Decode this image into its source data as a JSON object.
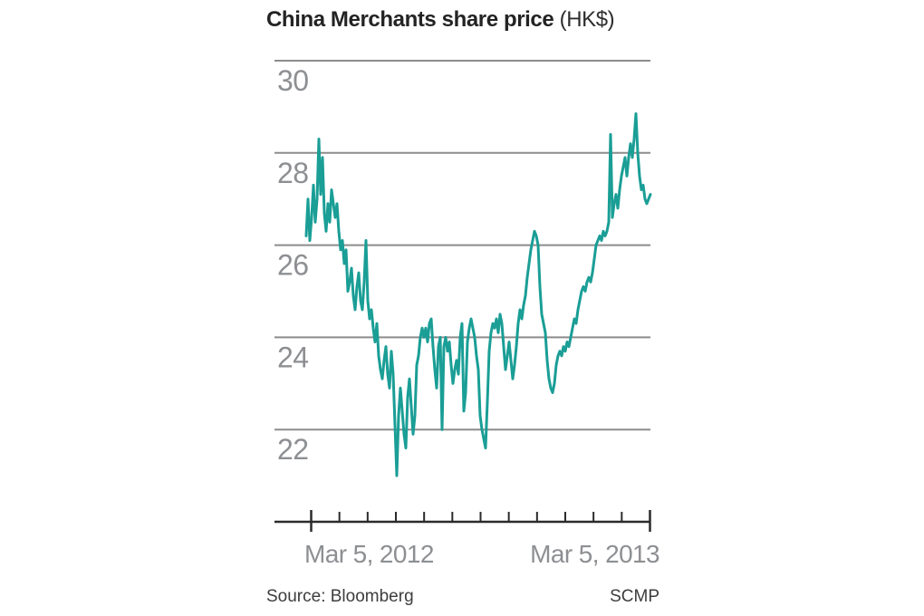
{
  "title": {
    "main": "China Merchants share price",
    "unit": " (HK$)"
  },
  "footer": {
    "source": "Source: Bloomberg",
    "credit": "SCMP"
  },
  "chart_data": {
    "type": "line",
    "title": "China Merchants share price (HK$)",
    "series_name": "China Merchants share price",
    "unit": "HK$",
    "x_start_label": "Mar 5, 2012",
    "x_end_label": "Mar 5, 2013",
    "x_tick_count": 13,
    "x_tick_interval": "monthly",
    "y_ticks": [
      30,
      28,
      26,
      24,
      22
    ],
    "ylim": [
      20,
      30
    ],
    "grid": true,
    "line_color": "#1a9e96",
    "grid_color": "#8c8c8c",
    "axis_color": "#2b2b2b",
    "label_color": "#8d8f92",
    "values": [
      26.2,
      27.0,
      26.1,
      26.6,
      27.3,
      26.5,
      27.0,
      28.3,
      27.1,
      27.9,
      26.7,
      26.3,
      26.9,
      26.5,
      27.2,
      26.9,
      26.6,
      26.9,
      26.3,
      25.9,
      26.1,
      25.6,
      25.9,
      25.0,
      25.2,
      25.5,
      24.9,
      24.6,
      25.1,
      25.4,
      24.8,
      24.6,
      25.2,
      26.1,
      24.8,
      24.4,
      24.6,
      24.2,
      23.9,
      24.3,
      23.6,
      23.3,
      23.1,
      23.5,
      23.8,
      23.2,
      22.9,
      23.7,
      23.2,
      22.1,
      21.0,
      22.3,
      22.9,
      22.4,
      21.9,
      21.6,
      22.7,
      23.1,
      22.5,
      21.9,
      22.3,
      23.4,
      23.6,
      24.0,
      24.2,
      24.0,
      24.2,
      23.9,
      24.3,
      24.4,
      23.8,
      23.3,
      22.9,
      23.8,
      24.0,
      22.0,
      23.8,
      24.0,
      23.7,
      23.9,
      23.4,
      23.0,
      23.3,
      23.5,
      23.2,
      24.0,
      24.3,
      22.4,
      22.8,
      23.9,
      24.2,
      24.4,
      24.2,
      24.0,
      23.6,
      23.3,
      22.3,
      22.0,
      21.8,
      21.6,
      22.6,
      23.7,
      24.1,
      24.3,
      24.2,
      24.4,
      24.1,
      24.5,
      24.3,
      23.8,
      23.3,
      23.6,
      23.9,
      23.5,
      23.1,
      23.4,
      23.8,
      24.3,
      24.6,
      24.4,
      24.7,
      24.9,
      25.3,
      25.6,
      25.9,
      26.1,
      26.3,
      26.2,
      26.0,
      25.1,
      24.5,
      24.3,
      24.1,
      23.5,
      23.1,
      22.9,
      22.8,
      23.0,
      23.4,
      23.6,
      23.7,
      23.6,
      23.8,
      23.7,
      23.9,
      23.8,
      24.0,
      24.2,
      24.4,
      24.3,
      24.6,
      24.8,
      25.0,
      25.1,
      25.0,
      25.2,
      25.3,
      25.2,
      25.4,
      25.7,
      26.0,
      26.1,
      26.2,
      26.1,
      26.3,
      26.2,
      26.3,
      26.5,
      28.4,
      26.6,
      26.9,
      27.1,
      26.8,
      27.2,
      27.5,
      27.7,
      27.9,
      27.5,
      27.9,
      28.2,
      27.9,
      28.3,
      28.85,
      28.0,
      27.5,
      27.2,
      27.3,
      27.0,
      26.9,
      27.0,
      27.1
    ]
  }
}
